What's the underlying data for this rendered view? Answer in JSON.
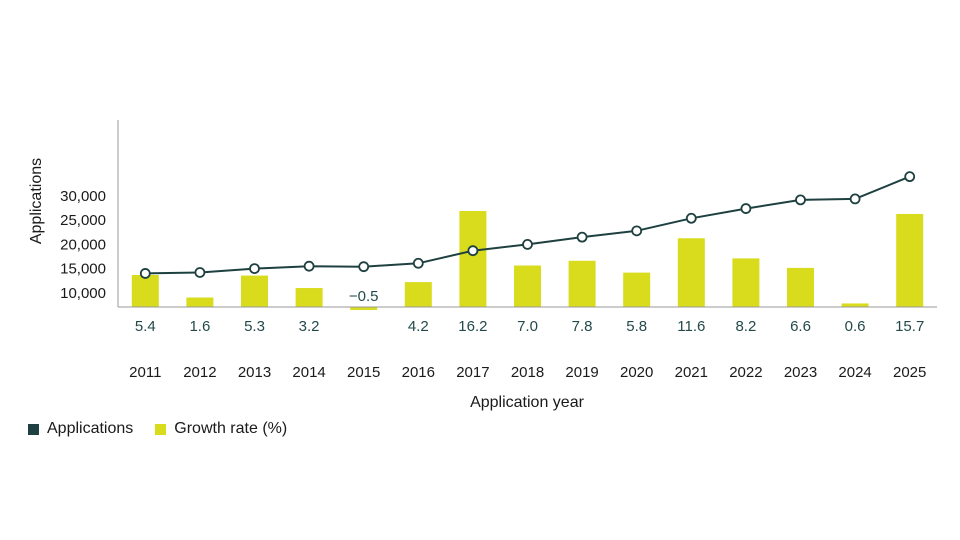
{
  "colors": {
    "applications": "#1e4040",
    "growth": "#d8dc1c",
    "axis": "#9a9a9a",
    "label": "#24494a"
  },
  "chart_data": {
    "type": "bar",
    "categories": [
      "2011",
      "2012",
      "2013",
      "2014",
      "2015",
      "2016",
      "2017",
      "2018",
      "2019",
      "2020",
      "2021",
      "2022",
      "2023",
      "2024",
      "2025"
    ],
    "series": [
      {
        "name": "Applications",
        "type": "line",
        "axis": "left",
        "values": [
          14000,
          14200,
          15000,
          15500,
          15400,
          16100,
          18700,
          20000,
          21500,
          22800,
          25400,
          27400,
          29200,
          29400,
          34000
        ]
      },
      {
        "name": "Growth rate (%)",
        "type": "bar",
        "axis": "right",
        "values": [
          5.4,
          1.6,
          5.3,
          3.2,
          -0.5,
          4.2,
          16.2,
          7.0,
          7.8,
          5.8,
          11.6,
          8.2,
          6.6,
          0.6,
          15.7
        ],
        "labels": [
          "5.4",
          "1.6",
          "5.3",
          "3.2",
          "−0.5",
          "4.2",
          "16.2",
          "7.0",
          "7.8",
          "5.8",
          "11.6",
          "8.2",
          "6.6",
          "0.6",
          "15.7"
        ]
      }
    ],
    "ylabel": "Applications",
    "xlabel": "Application year",
    "yticks": [
      10000,
      15000,
      20000,
      25000,
      30000
    ],
    "ytick_labels": [
      "10,000",
      "15,000",
      "20,000",
      "25,000",
      "30,000"
    ],
    "ylim": [
      0,
      36000
    ],
    "growth_ylim": [
      0,
      18000
    ],
    "legend_position": "bottom-left"
  }
}
